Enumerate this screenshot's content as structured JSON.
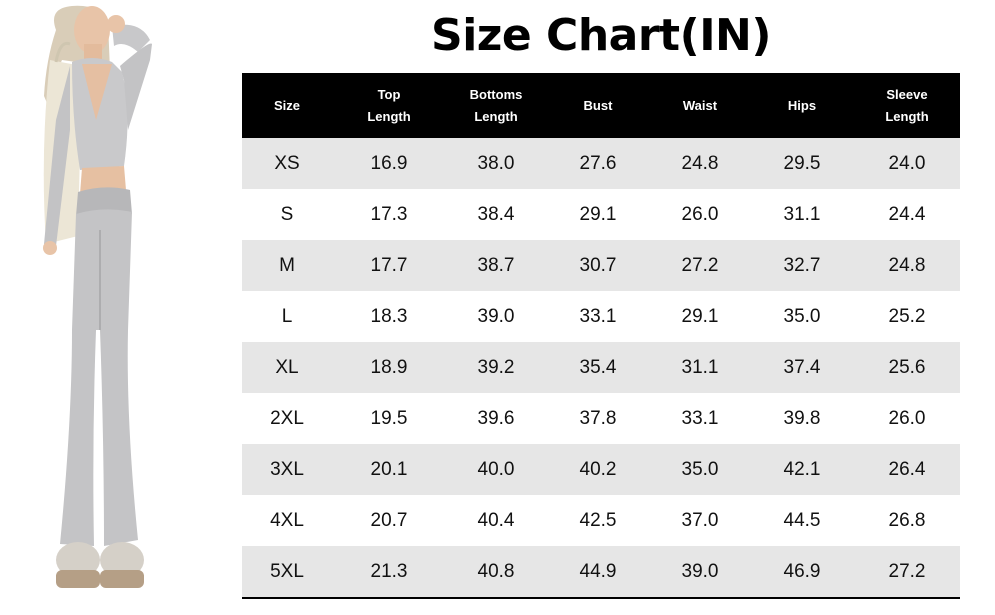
{
  "title": "Size Chart(IN)",
  "table": {
    "headers": [
      {
        "line1": "Size",
        "line2": ""
      },
      {
        "line1": "Top",
        "line2": "Length"
      },
      {
        "line1": "Bottoms",
        "line2": "Length"
      },
      {
        "line1": "Bust",
        "line2": ""
      },
      {
        "line1": "Waist",
        "line2": ""
      },
      {
        "line1": "Hips",
        "line2": ""
      },
      {
        "line1": "Sleeve",
        "line2": "Length"
      }
    ],
    "rows": [
      [
        "XS",
        "16.9",
        "38.0",
        "27.6",
        "24.8",
        "29.5",
        "24.0"
      ],
      [
        "S",
        "17.3",
        "38.4",
        "29.1",
        "26.0",
        "31.1",
        "24.4"
      ],
      [
        "M",
        "17.7",
        "38.7",
        "30.7",
        "27.2",
        "32.7",
        "24.8"
      ],
      [
        "L",
        "18.3",
        "39.0",
        "33.1",
        "29.1",
        "35.0",
        "25.2"
      ],
      [
        "XL",
        "18.9",
        "39.2",
        "35.4",
        "31.1",
        "37.4",
        "25.6"
      ],
      [
        "2XL",
        "19.5",
        "39.6",
        "37.8",
        "33.1",
        "39.8",
        "26.0"
      ],
      [
        "3XL",
        "20.1",
        "40.0",
        "40.2",
        "35.0",
        "42.1",
        "26.4"
      ],
      [
        "4XL",
        "20.7",
        "40.4",
        "42.5",
        "37.0",
        "44.5",
        "26.8"
      ],
      [
        "5XL",
        "21.3",
        "40.8",
        "44.9",
        "39.0",
        "46.9",
        "27.2"
      ]
    ]
  },
  "colors": {
    "header_bg": "#000000",
    "row_shade": "#e6e6e6",
    "garment": "#c4c4c6"
  }
}
